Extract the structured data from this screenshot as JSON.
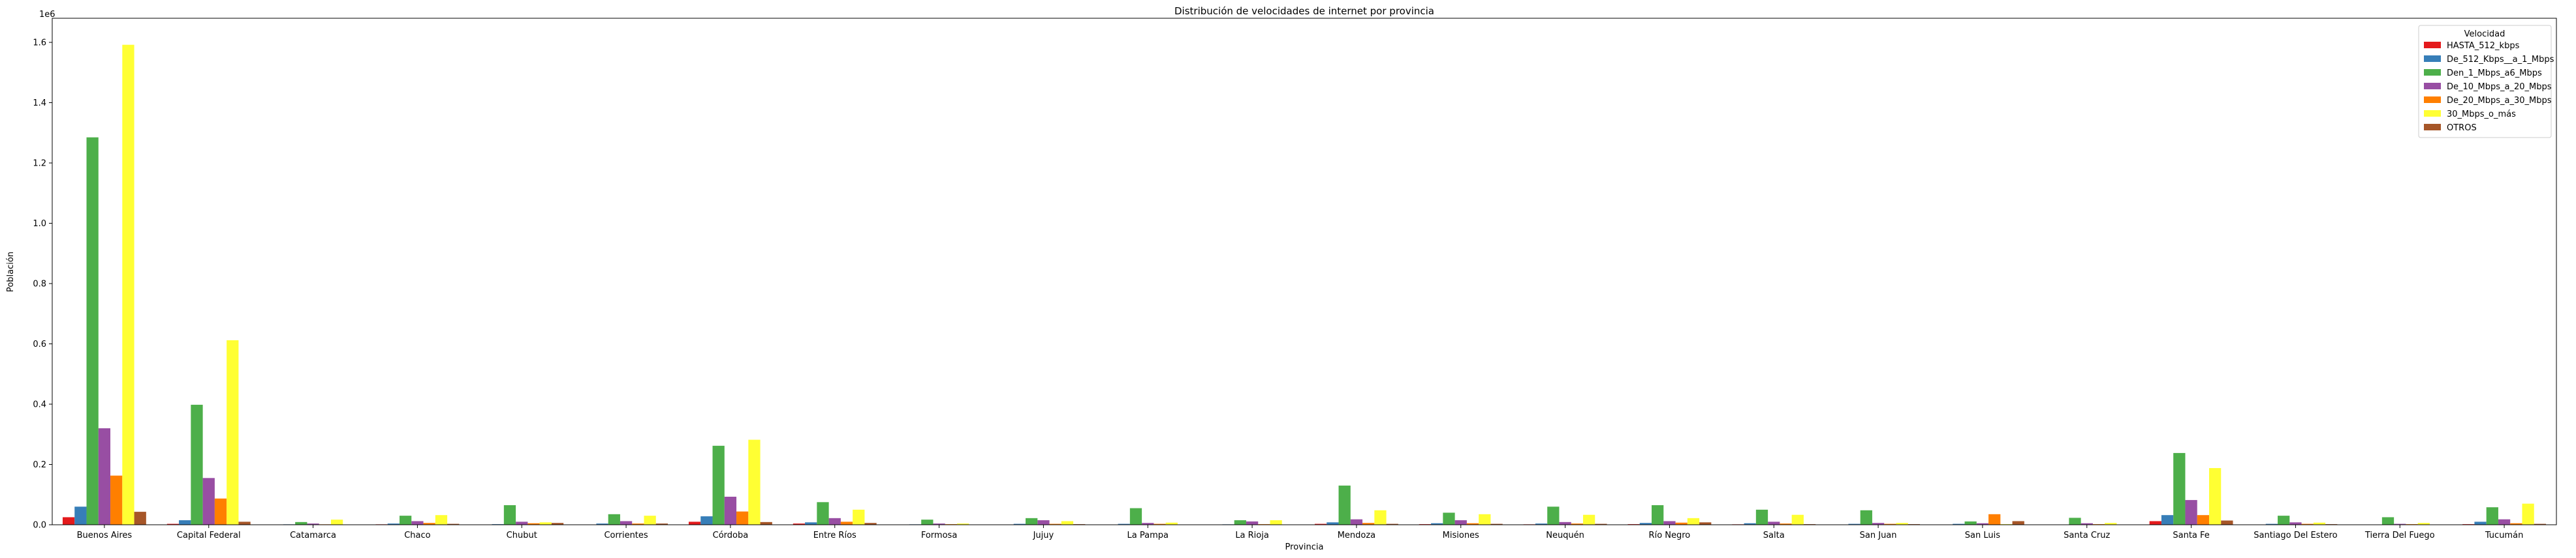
{
  "chart_data": {
    "type": "bar",
    "title": "Distribución de velocidades de internet por provincia",
    "xlabel": "Provincia",
    "ylabel": "Población",
    "y_offset_label": "1e6",
    "ylim": [
      0,
      1680000
    ],
    "y_ticks": [
      0,
      200000,
      400000,
      600000,
      800000,
      1000000,
      1200000,
      1400000,
      1600000
    ],
    "y_tick_labels": [
      "0.0",
      "0.2",
      "0.4",
      "0.6",
      "0.8",
      "1.0",
      "1.2",
      "1.4",
      "1.6"
    ],
    "grid": false,
    "legend": {
      "title": "Velocidad",
      "placement": "top-right"
    },
    "categories": [
      "Buenos Aires",
      "Capital Federal",
      "Catamarca",
      "Chaco",
      "Chubut",
      "Corrientes",
      "Córdoba",
      "Entre Ríos",
      "Formosa",
      "Jujuy",
      "La Pampa",
      "La Rioja",
      "Mendoza",
      "Misiones",
      "Neuquén",
      "Río Negro",
      "Salta",
      "San Juan",
      "San Luis",
      "Santa Cruz",
      "Santa Fe",
      "Santiago Del Estero",
      "Tierra Del Fuego",
      "Tucumán"
    ],
    "series": [
      {
        "name": "HASTA_512_kbps",
        "color": "#e41a1c",
        "values": [
          25000,
          3000,
          500,
          1500,
          1000,
          1000,
          10000,
          4000,
          500,
          1000,
          1000,
          500,
          3000,
          2000,
          1500,
          2000,
          1500,
          1000,
          1000,
          500,
          12000,
          1000,
          500,
          2000
        ]
      },
      {
        "name": "De_512_Kbps__a_1_Mbps",
        "color": "#377eb8",
        "values": [
          60000,
          15000,
          1500,
          4000,
          2000,
          4000,
          28000,
          8000,
          1500,
          3000,
          3000,
          1500,
          8000,
          5000,
          4000,
          6000,
          5000,
          3000,
          3000,
          1000,
          32000,
          3000,
          1000,
          10000
        ]
      },
      {
        "name": "Den_1_Mbps_a6_Mbps",
        "color": "#4daf4a",
        "values": [
          1285000,
          398000,
          9000,
          30000,
          65000,
          35000,
          262000,
          75000,
          17000,
          22000,
          55000,
          15000,
          130000,
          40000,
          60000,
          65000,
          50000,
          48000,
          11000,
          23000,
          238000,
          30000,
          25000,
          58000
        ]
      },
      {
        "name": "De_10_Mbps_a_20_Mbps",
        "color": "#984ea3",
        "values": [
          320000,
          155000,
          4000,
          12000,
          10000,
          12000,
          93000,
          22000,
          4000,
          15000,
          6000,
          11000,
          18000,
          15000,
          9000,
          12000,
          10000,
          6000,
          5000,
          5000,
          82000,
          8000,
          3000,
          18000
        ]
      },
      {
        "name": "De_20_Mbps_a_30_Mbps",
        "color": "#ff7f00",
        "values": [
          163000,
          87000,
          1500,
          6000,
          5000,
          4000,
          44000,
          10000,
          2000,
          3000,
          3000,
          2000,
          6000,
          5000,
          4000,
          7000,
          4000,
          3000,
          35000,
          2000,
          32000,
          3000,
          2000,
          5000
        ]
      },
      {
        "name": "30_Mbps_o_más",
        "color": "#ffff33",
        "values": [
          1592000,
          612000,
          17000,
          32000,
          8000,
          30000,
          282000,
          50000,
          4000,
          12000,
          7000,
          15000,
          48000,
          35000,
          33000,
          22000,
          33000,
          6000,
          2000,
          6000,
          188000,
          7000,
          6000,
          70000
        ]
      },
      {
        "name": "OTROS",
        "color": "#a65628",
        "values": [
          43000,
          10000,
          1000,
          3000,
          6000,
          4000,
          9000,
          6000,
          1000,
          2000,
          1000,
          1000,
          3000,
          3000,
          3000,
          8000,
          2000,
          2000,
          12000,
          1000,
          14000,
          2000,
          1000,
          3000
        ]
      }
    ]
  }
}
